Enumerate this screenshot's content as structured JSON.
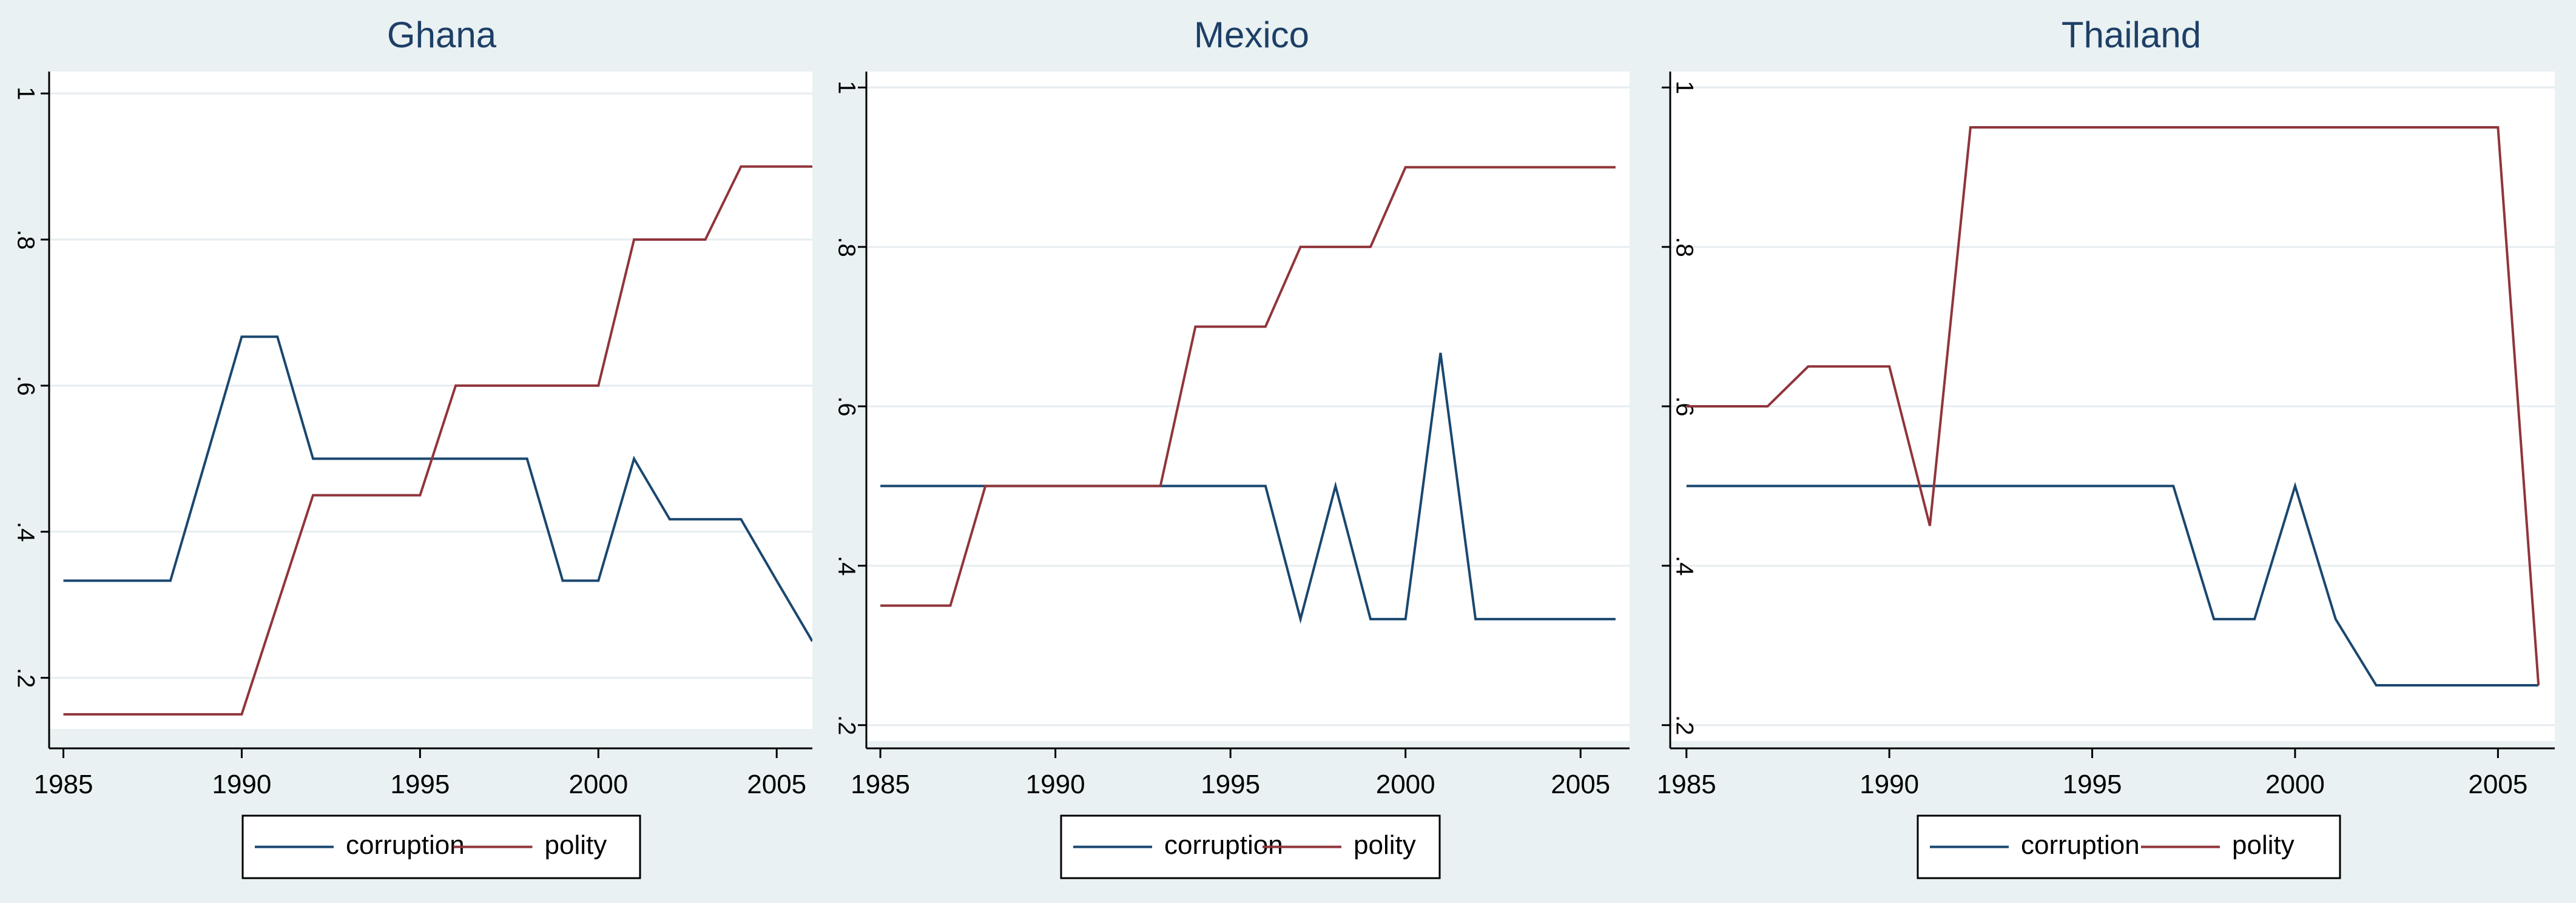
{
  "figure": {
    "background": "#e9f1f3",
    "plot_background": "#ffffff",
    "grid_color": "#e6ecef",
    "text_color": "#1e3f66"
  },
  "chart_data": [
    {
      "type": "line",
      "title": "Ghana",
      "xlabel": "",
      "ylabel": "",
      "xlim": [
        1984.6,
        2006
      ],
      "ylim": [
        0.13,
        1.03
      ],
      "xticks": [
        1985,
        1990,
        1995,
        2000,
        2005
      ],
      "yticks": [
        0.2,
        0.4,
        0.6,
        0.8,
        1
      ],
      "ytick_labels": [
        ".2",
        ".4",
        ".6",
        ".8",
        "1"
      ],
      "grid": true,
      "legend": "bottom",
      "series": [
        {
          "name": "corruption",
          "color": "#1a476f",
          "x": [
            1985,
            1986,
            1987,
            1988,
            1989,
            1990,
            1991,
            1992,
            1993,
            1994,
            1995,
            1996,
            1997,
            1998,
            1999,
            2000,
            2001,
            2002,
            2003,
            2004,
            2005,
            2006
          ],
          "y": [
            0.333,
            0.333,
            0.333,
            0.333,
            0.5,
            0.667,
            0.667,
            0.5,
            0.5,
            0.5,
            0.5,
            0.5,
            0.5,
            0.5,
            0.333,
            0.333,
            0.5,
            0.417,
            0.417,
            0.417,
            0.333,
            0.25
          ]
        },
        {
          "name": "polity",
          "color": "#90353b",
          "x": [
            1985,
            1986,
            1987,
            1988,
            1989,
            1990,
            1991,
            1992,
            1993,
            1994,
            1995,
            1996,
            1997,
            1998,
            1999,
            2000,
            2001,
            2002,
            2003,
            2004,
            2005,
            2006
          ],
          "y": [
            0.15,
            0.15,
            0.15,
            0.15,
            0.15,
            0.15,
            0.3,
            0.45,
            0.45,
            0.45,
            0.45,
            0.6,
            0.6,
            0.6,
            0.6,
            0.6,
            0.8,
            0.8,
            0.8,
            0.9,
            0.9,
            0.9
          ]
        }
      ]
    },
    {
      "type": "line",
      "title": "Mexico",
      "xlabel": "",
      "ylabel": "",
      "xlim": [
        1984.6,
        2006.4
      ],
      "ylim": [
        0.18,
        1.02
      ],
      "xticks": [
        1985,
        1990,
        1995,
        2000,
        2005
      ],
      "yticks": [
        0.2,
        0.4,
        0.6,
        0.8,
        1
      ],
      "ytick_labels": [
        ".2",
        ".4",
        ".6",
        ".8",
        "1"
      ],
      "grid": true,
      "legend": "bottom",
      "series": [
        {
          "name": "corruption",
          "color": "#1a476f",
          "x": [
            1985,
            1986,
            1987,
            1988,
            1989,
            1990,
            1991,
            1992,
            1993,
            1994,
            1995,
            1996,
            1997,
            1998,
            1999,
            2000,
            2001,
            2002,
            2003,
            2004,
            2005,
            2006
          ],
          "y": [
            0.5,
            0.5,
            0.5,
            0.5,
            0.5,
            0.5,
            0.5,
            0.5,
            0.5,
            0.5,
            0.5,
            0.5,
            0.333,
            0.5,
            0.333,
            0.333,
            0.667,
            0.333,
            0.333,
            0.333,
            0.333,
            0.333
          ]
        },
        {
          "name": "polity",
          "color": "#90353b",
          "x": [
            1985,
            1986,
            1987,
            1988,
            1989,
            1990,
            1991,
            1992,
            1993,
            1994,
            1995,
            1996,
            1997,
            1998,
            1999,
            2000,
            2001,
            2002,
            2003,
            2004,
            2005,
            2006
          ],
          "y": [
            0.35,
            0.35,
            0.35,
            0.5,
            0.5,
            0.5,
            0.5,
            0.5,
            0.5,
            0.7,
            0.7,
            0.7,
            0.8,
            0.8,
            0.8,
            0.9,
            0.9,
            0.9,
            0.9,
            0.9,
            0.9,
            0.9
          ]
        }
      ]
    },
    {
      "type": "line",
      "title": "Thailand",
      "xlabel": "",
      "ylabel": "",
      "xlim": [
        1984.6,
        2006.4
      ],
      "ylim": [
        0.18,
        1.02
      ],
      "xticks": [
        1985,
        1990,
        1995,
        2000,
        2005
      ],
      "yticks": [
        0.2,
        0.4,
        0.6,
        0.8,
        1
      ],
      "ytick_labels": [
        ".2",
        ".4",
        ".6",
        ".8",
        "1"
      ],
      "grid": true,
      "legend": "bottom",
      "series": [
        {
          "name": "corruption",
          "color": "#1a476f",
          "x": [
            1985,
            1986,
            1987,
            1988,
            1989,
            1990,
            1991,
            1992,
            1993,
            1994,
            1995,
            1996,
            1997,
            1998,
            1999,
            2000,
            2001,
            2002,
            2003,
            2004,
            2005,
            2006
          ],
          "y": [
            0.5,
            0.5,
            0.5,
            0.5,
            0.5,
            0.5,
            0.5,
            0.5,
            0.5,
            0.5,
            0.5,
            0.5,
            0.5,
            0.333,
            0.333,
            0.5,
            0.333,
            0.25,
            0.25,
            0.25,
            0.25,
            0.25
          ]
        },
        {
          "name": "polity",
          "color": "#90353b",
          "x": [
            1985,
            1986,
            1987,
            1988,
            1989,
            1990,
            1991,
            1992,
            1993,
            1994,
            1995,
            1996,
            1997,
            1998,
            1999,
            2000,
            2001,
            2002,
            2003,
            2004,
            2005,
            2006
          ],
          "y": [
            0.6,
            0.6,
            0.6,
            0.65,
            0.65,
            0.65,
            0.45,
            0.95,
            0.95,
            0.95,
            0.95,
            0.95,
            0.95,
            0.95,
            0.95,
            0.95,
            0.95,
            0.95,
            0.95,
            0.95,
            0.95,
            0.25
          ]
        }
      ]
    }
  ]
}
